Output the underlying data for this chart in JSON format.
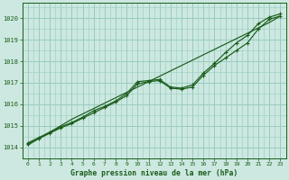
{
  "title": "Graphe pression niveau de la mer (hPa)",
  "bg_color": "#cce8e0",
  "grid_color": "#99ccbf",
  "line_color": "#1a5c1a",
  "xlim": [
    -0.5,
    23.5
  ],
  "ylim": [
    1013.5,
    1020.7
  ],
  "xticks": [
    0,
    1,
    2,
    3,
    4,
    5,
    6,
    7,
    8,
    9,
    10,
    11,
    12,
    13,
    14,
    15,
    16,
    17,
    18,
    19,
    20,
    21,
    22,
    23
  ],
  "yticks": [
    1014,
    1015,
    1016,
    1017,
    1018,
    1019,
    1020
  ],
  "trend_line": [
    1014.1,
    1014.4,
    1014.7,
    1015.0,
    1015.3,
    1015.55,
    1015.8,
    1016.05,
    1016.3,
    1016.55,
    1016.8,
    1017.05,
    1017.3,
    1017.55,
    1017.8,
    1018.05,
    1018.3,
    1018.55,
    1018.8,
    1019.05,
    1019.3,
    1019.55,
    1019.8,
    1020.1
  ],
  "line_upper": [
    1014.2,
    1014.45,
    1014.7,
    1014.95,
    1015.15,
    1015.4,
    1015.7,
    1015.9,
    1016.15,
    1016.5,
    1017.05,
    1017.1,
    1017.15,
    1016.8,
    1016.75,
    1016.9,
    1017.45,
    1017.9,
    1018.4,
    1018.85,
    1019.2,
    1019.75,
    1020.05,
    1020.2
  ],
  "line_lower": [
    1014.15,
    1014.4,
    1014.65,
    1014.9,
    1015.1,
    1015.35,
    1015.6,
    1015.85,
    1016.1,
    1016.4,
    1016.95,
    1017.05,
    1017.1,
    1016.75,
    1016.7,
    1016.8,
    1017.35,
    1017.8,
    1018.15,
    1018.5,
    1018.85,
    1019.5,
    1019.95,
    1020.1
  ]
}
